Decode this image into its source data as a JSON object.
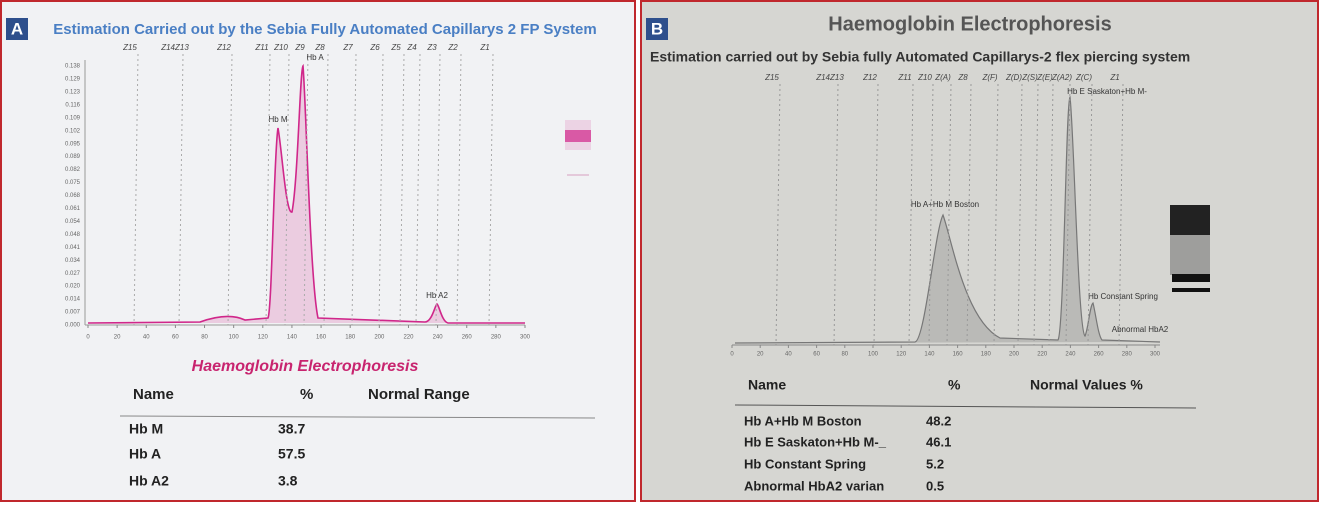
{
  "panels": [
    {
      "label": "A",
      "title": "Estimation Carried out by the Sebia Fully Automated Capillarys 2 FP System",
      "zones": [
        "Z15",
        "Z14Z13",
        "Z12",
        "Z11",
        "Z10",
        "Z9",
        "Z8",
        "Z7",
        "Z6",
        "Z5",
        "Z4",
        "Z3",
        "Z2",
        "Z1"
      ],
      "y_ticks": [
        "0.138",
        "0.129",
        "0.123",
        "0.116",
        "0.109",
        "0.102",
        "0.095",
        "0.089",
        "0.082",
        "0.075",
        "0.068",
        "0.061",
        "0.054",
        "0.048",
        "0.041",
        "0.034",
        "0.027",
        "0.020",
        "0.014",
        "0.007",
        "0.000"
      ],
      "x_ticks": [
        0,
        20,
        40,
        60,
        80,
        100,
        120,
        140,
        160,
        180,
        200,
        220,
        240,
        260,
        280,
        300
      ],
      "peaks": [
        "Hb M",
        "Hb A",
        "Hb A2"
      ],
      "chart_title": "Haemoglobin Electrophoresis",
      "table": {
        "header": [
          "Name",
          "%",
          "Normal Range"
        ],
        "rows": [
          [
            "Hb M",
            38.7
          ],
          [
            "Hb A",
            57.5
          ],
          [
            "Hb A2",
            3.8
          ]
        ]
      }
    },
    {
      "label": "B",
      "title": "Haemoglobin Electrophoresis",
      "subtitle": "Estimation carried out by Sebia fully Automated Capillarys-2 flex piercing system",
      "zones": [
        "Z15",
        "Z14Z13",
        "Z12",
        "Z11",
        "Z10",
        "Z(A)",
        "Z8",
        "Z(F)",
        "Z(D)",
        "Z(S)",
        "Z(E)",
        "Z(A2)",
        "Z(C)",
        "Z1"
      ],
      "x_ticks": [
        0,
        20,
        40,
        60,
        80,
        100,
        120,
        140,
        160,
        180,
        200,
        220,
        240,
        260,
        280,
        300
      ],
      "peaks": [
        "Hb A+Hb M Boston",
        "Hb E Saskaton+Hb M-",
        "Hb Constant Spring",
        "Abnormal HbA2"
      ],
      "table": {
        "header": [
          "Name",
          "%",
          "Normal Values %"
        ],
        "rows": [
          [
            "Hb A+Hb M Boston",
            48.2
          ],
          [
            "Hb E Saskaton+Hb M-_",
            46.1
          ],
          [
            "Hb Constant Spring",
            5.2
          ],
          [
            "Abnormal HbA2 varian",
            0.5
          ]
        ]
      }
    }
  ]
}
